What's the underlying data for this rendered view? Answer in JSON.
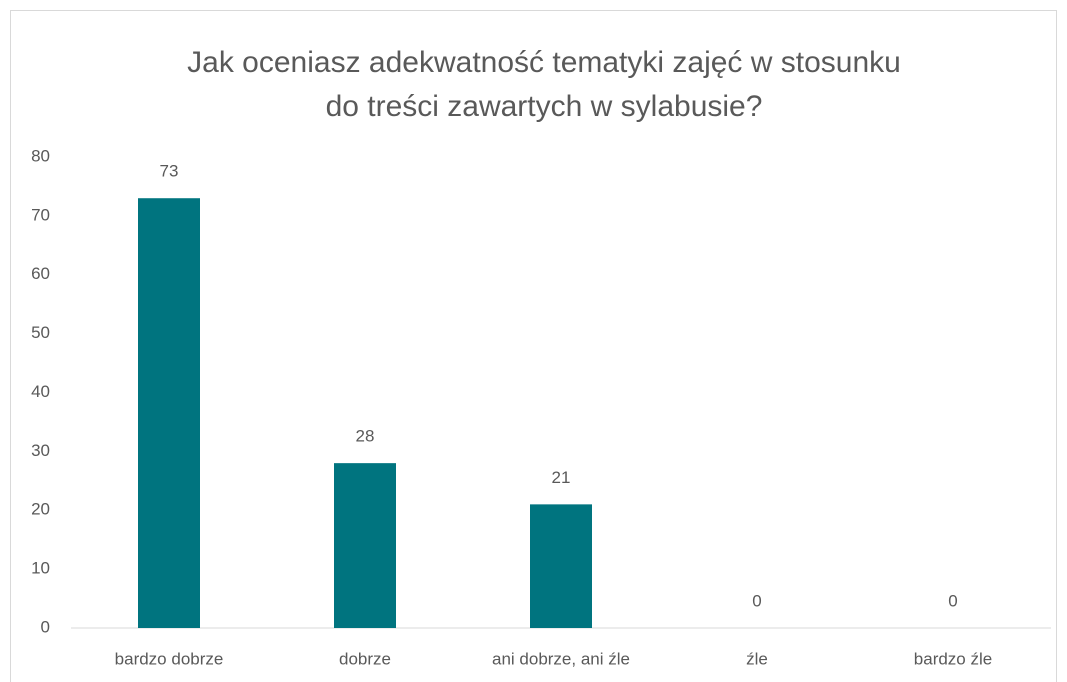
{
  "chart_data": {
    "type": "bar",
    "title": [
      "Jak oceniasz adekwatność tematyki zajęć w stosunku",
      "do treści zawartych w sylabusie?"
    ],
    "categories": [
      "bardzo dobrze",
      "dobrze",
      "ani dobrze, ani źle",
      "źle",
      "bardzo źle"
    ],
    "values": [
      73,
      28,
      21,
      0,
      0
    ],
    "color": "#00747f",
    "ylim": [
      0,
      80
    ],
    "yticks": [
      0,
      10,
      20,
      30,
      40,
      50,
      60,
      70,
      80
    ],
    "grid": false,
    "data_labels": true
  }
}
